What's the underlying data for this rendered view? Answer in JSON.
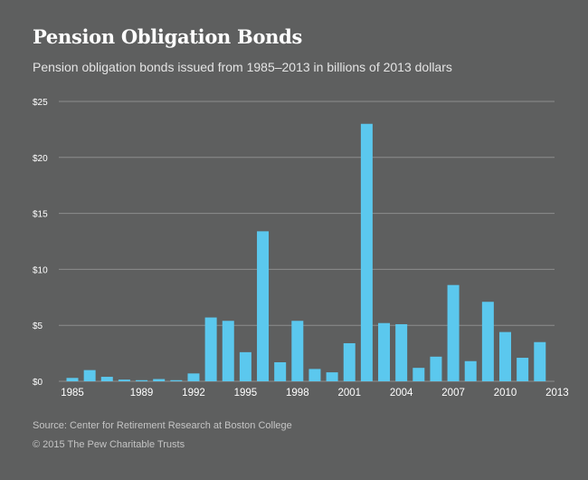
{
  "chart_data": {
    "type": "bar",
    "title": "Pension Obligation Bonds",
    "subtitle": "Pension obligation bonds issued from 1985–2013 in billions of 2013 dollars",
    "xlabel": "",
    "ylabel": "",
    "categories": [
      "1985",
      "1986",
      "1987",
      "1988",
      "1989",
      "1990",
      "1991",
      "1992",
      "1993",
      "1994",
      "1995",
      "1996",
      "1997",
      "1998",
      "1999",
      "2000",
      "2001",
      "2002",
      "2003",
      "2004",
      "2005",
      "2006",
      "2007",
      "2008",
      "2009",
      "2010",
      "2011",
      "2012",
      "2013"
    ],
    "values": [
      0.3,
      1.0,
      0.4,
      0.15,
      0.1,
      0.2,
      0.1,
      0.7,
      5.7,
      5.4,
      2.6,
      13.4,
      1.7,
      5.4,
      1.1,
      0.8,
      3.4,
      23.0,
      5.2,
      5.1,
      1.2,
      2.2,
      8.6,
      1.8,
      7.1,
      4.4,
      2.1,
      3.5,
      0.0
    ],
    "x_tick_labels": [
      "1985",
      "1989",
      "1992",
      "1995",
      "1998",
      "2001",
      "2004",
      "2007",
      "2010",
      "2013"
    ],
    "y_tick_labels": [
      "$0",
      "$5",
      "$10",
      "$15",
      "$20",
      "$25"
    ],
    "y_ticks": [
      0,
      5,
      10,
      15,
      20,
      25
    ],
    "ylim": [
      0,
      25
    ],
    "grid": true,
    "bar_color": "#5bc8ee",
    "grid_color": "#8c8d8d"
  },
  "footer": {
    "source": "Source: Center for Retirement Research at Boston College",
    "copyright": "© 2015 The Pew Charitable Trusts"
  }
}
